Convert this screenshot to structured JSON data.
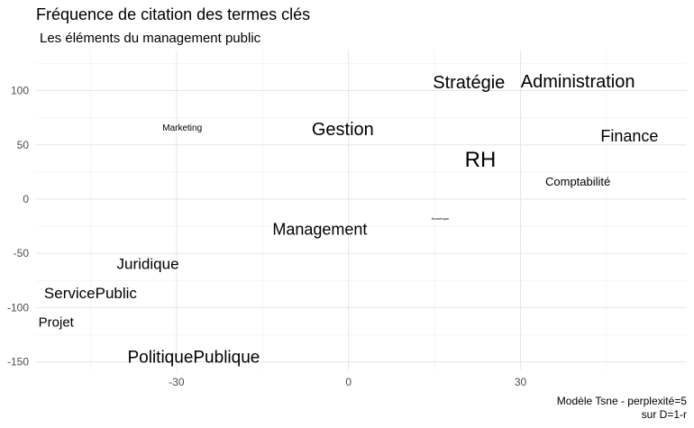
{
  "chart_data": {
    "type": "scatter",
    "title": "Fréquence de citation des termes clés",
    "subtitle": "Les éléments du management public",
    "caption_line1": "Modèle Tsne - perplexité=5",
    "caption_line2": "sur D=1-r",
    "xlabel": "",
    "ylabel": "",
    "xlim": [
      -54.5,
      59
    ],
    "ylim": [
      -157,
      137
    ],
    "x_ticks": [
      -30,
      0,
      30
    ],
    "y_ticks": [
      100,
      50,
      0,
      -50,
      -100,
      -150
    ],
    "grid": true,
    "points": [
      {
        "label": "Stratégie",
        "x": 21,
        "y": 107,
        "size": 20
      },
      {
        "label": "Administration",
        "x": 40,
        "y": 108,
        "size": 20
      },
      {
        "label": "Marketing",
        "x": -29,
        "y": 65,
        "size": 10
      },
      {
        "label": "Gestion",
        "x": -1,
        "y": 64,
        "size": 20
      },
      {
        "label": "Finance",
        "x": 49,
        "y": 58,
        "size": 18
      },
      {
        "label": "RH",
        "x": 23,
        "y": 36,
        "size": 24
      },
      {
        "label": "Comptabilité",
        "x": 40,
        "y": 16,
        "size": 13
      },
      {
        "label": "Numérique",
        "x": 16,
        "y": -18,
        "size": 4
      },
      {
        "label": "Management",
        "x": -5,
        "y": -28,
        "size": 18
      },
      {
        "label": "Juridique",
        "x": -35,
        "y": -60,
        "size": 17
      },
      {
        "label": "ServicePublic",
        "x": -45,
        "y": -87,
        "size": 17
      },
      {
        "label": "Projet",
        "x": -51,
        "y": -114,
        "size": 15
      },
      {
        "label": "PolitiquePublique",
        "x": -27,
        "y": -146,
        "size": 19
      }
    ]
  }
}
